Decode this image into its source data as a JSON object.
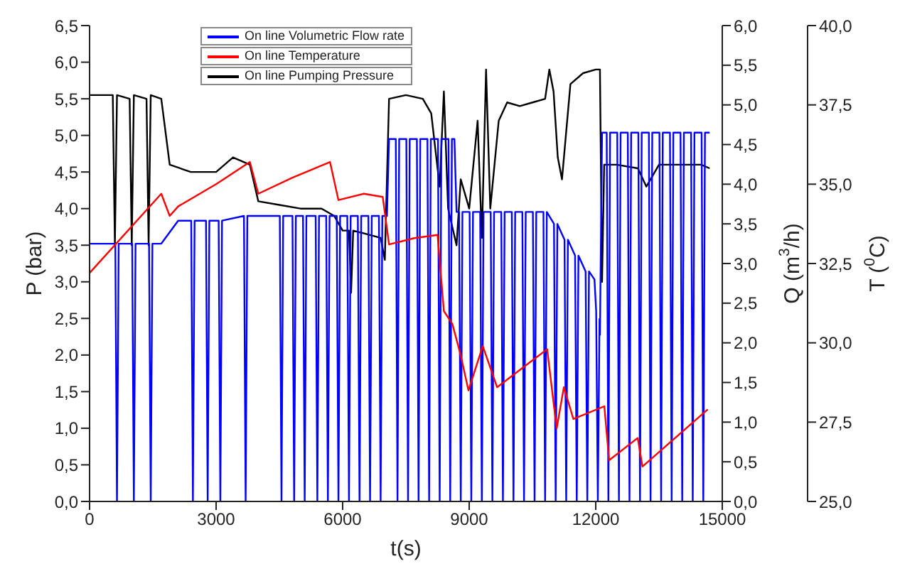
{
  "chart_data": {
    "type": "line",
    "xlabel": "t(s)",
    "ylabel": "P (bar)",
    "y2label": "Q (m$^{3}$/h)",
    "y3label": "T ($^{0}$C)",
    "xlim": [
      0,
      15000
    ],
    "xticks": [
      0,
      3000,
      6000,
      9000,
      12000,
      15000
    ],
    "ylim": [
      0,
      6.5
    ],
    "yticks": [
      {
        "value": 0,
        "label": "0,0"
      },
      {
        "value": 0.5,
        "label": "0,5"
      },
      {
        "value": 1,
        "label": "1,0"
      },
      {
        "value": 1.5,
        "label": "1,5"
      },
      {
        "value": 2,
        "label": "2,0"
      },
      {
        "value": 2.5,
        "label": "2,5"
      },
      {
        "value": 3,
        "label": "3,0"
      },
      {
        "value": 3.5,
        "label": "3,5"
      },
      {
        "value": 4,
        "label": "4,0"
      },
      {
        "value": 4.5,
        "label": "4,5"
      },
      {
        "value": 5,
        "label": "5,0"
      },
      {
        "value": 5.5,
        "label": "5,5"
      },
      {
        "value": 6,
        "label": "6,0"
      },
      {
        "value": 6.5,
        "label": "6,5"
      }
    ],
    "y2lim": [
      0,
      6
    ],
    "y2ticks": [
      {
        "value": 0,
        "label": "0,0"
      },
      {
        "value": 0.5,
        "label": "0,5"
      },
      {
        "value": 1,
        "label": "1,0"
      },
      {
        "value": 1.5,
        "label": "1,5"
      },
      {
        "value": 2,
        "label": "2,0"
      },
      {
        "value": 2.5,
        "label": "2,5"
      },
      {
        "value": 3,
        "label": "3,0"
      },
      {
        "value": 3.5,
        "label": "3,5"
      },
      {
        "value": 4,
        "label": "4,0"
      },
      {
        "value": 4.5,
        "label": "4,5"
      },
      {
        "value": 5,
        "label": "5,0"
      },
      {
        "value": 5.5,
        "label": "5,5"
      },
      {
        "value": 6,
        "label": "6,0"
      }
    ],
    "y3lim": [
      25,
      40
    ],
    "y3ticks": [
      {
        "value": 25,
        "label": "25,0"
      },
      {
        "value": 27.5,
        "label": "27,5"
      },
      {
        "value": 30,
        "label": "30,0"
      },
      {
        "value": 32.5,
        "label": "32,5"
      },
      {
        "value": 35,
        "label": "35,0"
      },
      {
        "value": 37.5,
        "label": "37,5"
      },
      {
        "value": 40,
        "label": "40,0"
      }
    ],
    "legend": "top left",
    "grid": false,
    "marker": "none",
    "line_style": "solid",
    "series": [
      {
        "name": "On line Volumetric Flow rate",
        "color": "#0000ff",
        "axis": "y2",
        "x": [
          0,
          610,
          650,
          690,
          1010,
          1050,
          1090,
          1410,
          1450,
          1490,
          1700,
          2100,
          2410,
          2450,
          2490,
          2760,
          2800,
          2840,
          3060,
          3100,
          3140,
          3660,
          3700,
          3740,
          4510,
          4550,
          4590,
          4810,
          4850,
          4890,
          5060,
          5100,
          5140,
          5360,
          5400,
          5440,
          5610,
          5650,
          5690,
          5860,
          5900,
          5940,
          6110,
          6150,
          6190,
          6360,
          6400,
          6440,
          6610,
          6650,
          6690,
          6860,
          6900,
          6940,
          7050,
          7100,
          7260,
          7300,
          7340,
          7510,
          7550,
          7590,
          7760,
          7800,
          7840,
          8010,
          8050,
          8090,
          8260,
          8300,
          8340,
          8510,
          8550,
          8590,
          8650,
          8700,
          8760,
          8800,
          8840,
          9010,
          9050,
          9090,
          9260,
          9300,
          9340,
          9510,
          9550,
          9590,
          9760,
          9800,
          9840,
          10010,
          10050,
          10090,
          10260,
          10300,
          10340,
          10510,
          10550,
          10590,
          10760,
          10800,
          10840,
          11010,
          11050,
          11090,
          11260,
          11300,
          11340,
          11510,
          11550,
          11590,
          11760,
          11800,
          11840,
          11970,
          12010,
          12050,
          12090,
          12100,
          12150,
          12260,
          12300,
          12340,
          12510,
          12550,
          12590,
          12760,
          12800,
          12840,
          13010,
          13050,
          13090,
          13260,
          13300,
          13340,
          13510,
          13550,
          13590,
          13760,
          13800,
          13840,
          14010,
          14050,
          14090,
          14260,
          14300,
          14340,
          14510,
          14550,
          14590,
          14700
        ],
        "values": [
          3.25,
          3.25,
          0,
          3.25,
          3.25,
          0,
          3.25,
          3.25,
          0,
          3.25,
          3.25,
          3.54,
          3.54,
          0,
          3.54,
          3.54,
          0,
          3.54,
          3.54,
          0,
          3.54,
          3.6,
          0,
          3.6,
          3.6,
          0,
          3.6,
          3.6,
          0,
          3.6,
          3.6,
          0,
          3.6,
          3.6,
          0,
          3.6,
          3.6,
          0,
          3.6,
          3.6,
          0,
          3.6,
          3.6,
          0,
          3.6,
          3.6,
          0,
          3.6,
          3.6,
          0,
          3.6,
          3.6,
          0,
          3.6,
          3.6,
          4.57,
          4.57,
          0,
          4.57,
          4.57,
          0,
          4.57,
          4.57,
          0,
          4.57,
          4.57,
          0,
          4.57,
          4.57,
          0,
          4.57,
          4.57,
          0,
          4.57,
          4.57,
          3.65,
          3.65,
          0,
          3.65,
          3.65,
          0,
          3.65,
          3.65,
          0,
          3.65,
          3.65,
          0,
          3.65,
          3.65,
          0,
          3.65,
          3.65,
          0,
          3.65,
          3.65,
          0,
          3.65,
          3.65,
          0,
          3.65,
          3.65,
          0,
          3.65,
          3.5,
          0,
          3.5,
          3.3,
          0,
          3.3,
          3.1,
          0,
          3.1,
          2.9,
          0,
          2.9,
          2.8,
          2.4,
          0,
          2.3,
          2.1,
          4.65,
          4.65,
          0,
          4.65,
          4.65,
          0,
          4.65,
          4.65,
          0,
          4.65,
          4.65,
          0,
          4.65,
          4.65,
          0,
          4.65,
          4.65,
          0,
          4.65,
          4.65,
          0,
          4.65,
          4.65,
          0,
          4.65,
          4.65,
          0,
          4.65,
          4.65,
          0,
          4.65,
          4.65
        ]
      },
      {
        "name": "On line Temperature",
        "color": "#ff0000",
        "axis": "y3",
        "x": [
          0,
          1700,
          1900,
          2100,
          3000,
          3800,
          4000,
          4800,
          5700,
          5900,
          6500,
          6950,
          7100,
          7700,
          8250,
          8400,
          8600,
          8800,
          8983,
          9322,
          9661,
          10848,
          11074,
          11244,
          11470,
          12204,
          12317,
          12995,
          13108,
          14656
        ],
        "values": [
          32.2,
          34.7,
          34.0,
          34.3,
          35.0,
          35.7,
          34.7,
          35.2,
          35.7,
          34.5,
          34.7,
          34.6,
          33.1,
          33.3,
          33.4,
          31.0,
          30.6,
          29.6,
          28.5,
          29.9,
          28.6,
          29.8,
          27.3,
          28.6,
          27.6,
          28.0,
          26.3,
          27.0,
          26.1,
          27.9
        ]
      },
      {
        "name": "On line Pumping Pressure",
        "color": "#000000",
        "x": [
          0,
          550,
          600,
          650,
          950,
          1000,
          1050,
          1350,
          1400,
          1450,
          1700,
          1900,
          2400,
          3000,
          3400,
          3800,
          4000,
          4500,
          5000,
          5500,
          5800,
          6000,
          6150,
          6200,
          6250,
          6900,
          7000,
          7100,
          7500,
          7900,
          8100,
          8300,
          8400,
          8500,
          8700,
          8800,
          9000,
          9200,
          9300,
          9400,
          9500,
          9700,
          9900,
          10200,
          10500,
          10800,
          10900,
          11000,
          11100,
          11200,
          11400,
          11700,
          12000,
          12100,
          12150,
          12200,
          12500,
          13000,
          13200,
          13500,
          14000,
          14500,
          14700
        ],
        "values": [
          5.55,
          5.55,
          3.5,
          5.55,
          5.5,
          3.5,
          5.55,
          5.5,
          3.5,
          5.55,
          5.5,
          4.6,
          4.5,
          4.5,
          4.7,
          4.6,
          4.1,
          4.05,
          4.0,
          4.0,
          3.9,
          3.7,
          3.7,
          2.85,
          3.7,
          3.6,
          3.3,
          5.5,
          5.55,
          5.5,
          5.3,
          4.3,
          5.6,
          4.0,
          3.5,
          4.4,
          4.0,
          5.2,
          3.6,
          5.9,
          4.0,
          5.2,
          5.45,
          5.4,
          5.45,
          5.5,
          5.9,
          5.6,
          4.7,
          4.4,
          5.7,
          5.85,
          5.9,
          5.9,
          3.0,
          4.6,
          4.6,
          4.55,
          4.3,
          4.6,
          4.6,
          4.6,
          4.55
        ]
      }
    ]
  }
}
